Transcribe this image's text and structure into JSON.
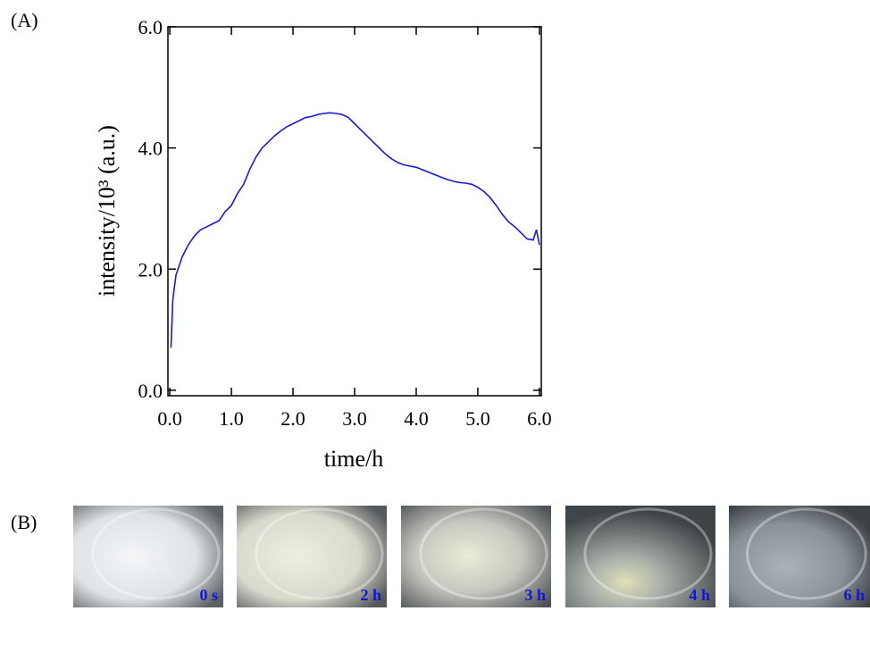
{
  "chart_data": {
    "type": "line",
    "x_label": "time/h",
    "y_label": "intensity/10³ (a.u.)",
    "x": [
      0.02,
      0.05,
      0.1,
      0.2,
      0.3,
      0.4,
      0.5,
      0.6,
      0.7,
      0.8,
      0.9,
      1.0,
      1.1,
      1.2,
      1.3,
      1.4,
      1.5,
      1.6,
      1.7,
      1.8,
      1.9,
      2.0,
      2.1,
      2.2,
      2.3,
      2.4,
      2.5,
      2.6,
      2.7,
      2.8,
      2.9,
      3.0,
      3.1,
      3.2,
      3.3,
      3.4,
      3.5,
      3.6,
      3.7,
      3.8,
      3.9,
      4.0,
      4.1,
      4.2,
      4.3,
      4.4,
      4.5,
      4.6,
      4.7,
      4.8,
      4.9,
      5.0,
      5.1,
      5.2,
      5.3,
      5.4,
      5.5,
      5.6,
      5.7,
      5.8,
      5.9,
      5.95,
      6.0
    ],
    "series": [
      {
        "color": "#1a1ad6",
        "values": [
          0.7,
          1.5,
          1.9,
          2.2,
          2.4,
          2.55,
          2.65,
          2.7,
          2.75,
          2.8,
          2.95,
          3.05,
          3.25,
          3.4,
          3.65,
          3.85,
          4.0,
          4.1,
          4.2,
          4.28,
          4.35,
          4.4,
          4.45,
          4.5,
          4.52,
          4.55,
          4.57,
          4.58,
          4.57,
          4.55,
          4.5,
          4.4,
          4.3,
          4.2,
          4.1,
          4.0,
          3.9,
          3.82,
          3.76,
          3.72,
          3.7,
          3.68,
          3.64,
          3.6,
          3.56,
          3.52,
          3.48,
          3.45,
          3.43,
          3.42,
          3.4,
          3.35,
          3.28,
          3.18,
          3.05,
          2.9,
          2.78,
          2.7,
          2.6,
          2.5,
          2.48,
          2.65,
          2.4
        ]
      }
    ],
    "xlim": [
      -0.03,
      6.03
    ],
    "ylim": [
      -0.09,
      6.0
    ],
    "xticks": [
      {
        "value": 0,
        "label": "0.0"
      },
      {
        "value": 1,
        "label": "1.0"
      },
      {
        "value": 2,
        "label": "2.0"
      },
      {
        "value": 3,
        "label": "3.0"
      },
      {
        "value": 4,
        "label": "4.0"
      },
      {
        "value": 5,
        "label": "5.0"
      },
      {
        "value": 6,
        "label": "6.0"
      }
    ],
    "yticks": [
      {
        "value": 0,
        "label": "0.0"
      },
      {
        "value": 2,
        "label": "2.0"
      },
      {
        "value": 4,
        "label": "4.0"
      },
      {
        "value": 6,
        "label": "6.0"
      }
    ]
  },
  "panel_labels": [
    "(A)",
    "(B)"
  ],
  "photos": [
    "0 s",
    "2 h",
    "3 h",
    "4 h",
    "6 h"
  ]
}
